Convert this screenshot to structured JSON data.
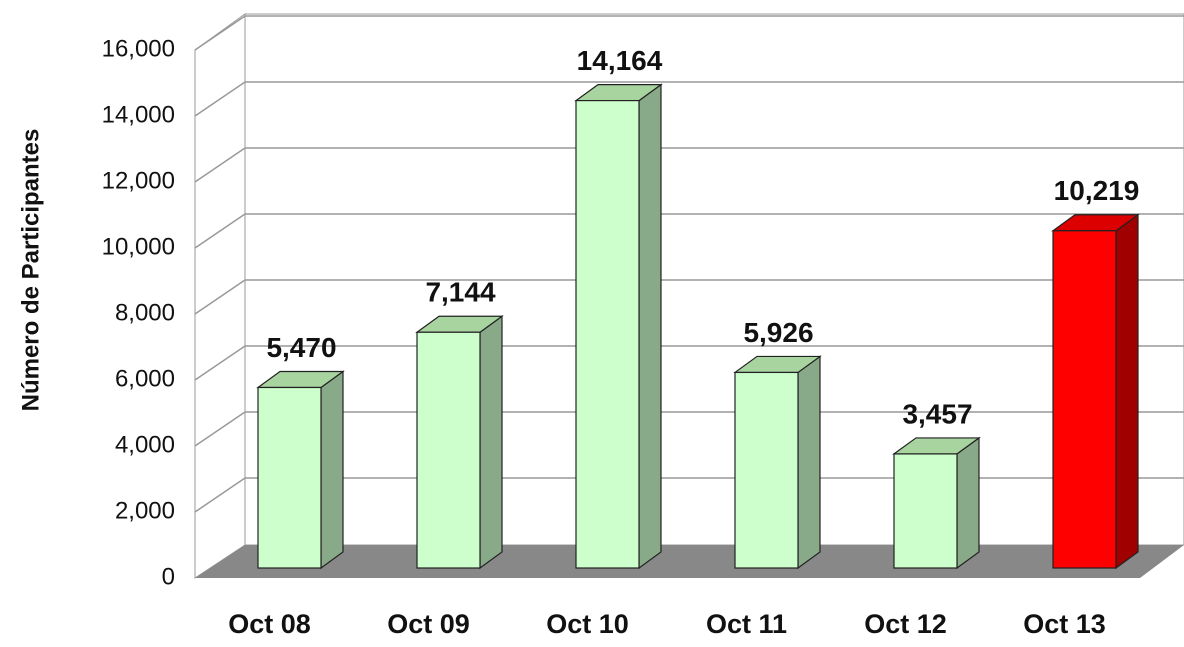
{
  "chart_data": {
    "type": "bar3d",
    "y_label": "Número de Participantes",
    "categories": [
      "Oct 08",
      "Oct 09",
      "Oct 10",
      "Oct 11",
      "Oct 12",
      "Oct 13"
    ],
    "values": [
      5470,
      7144,
      14164,
      5926,
      3457,
      10219
    ],
    "value_labels": [
      "5,470",
      "7,144",
      "14,164",
      "5,926",
      "3,457",
      "10,219"
    ],
    "colors": [
      "#ccffcc",
      "#ccffcc",
      "#ccffcc",
      "#ccffcc",
      "#ccffcc",
      "#ff0000"
    ],
    "ylim": [
      0,
      16000
    ],
    "yticks": [
      0,
      {
        "value": 2000,
        "label": "2,000"
      },
      {
        "value": 4000,
        "label": "4,000"
      },
      {
        "value": 6000,
        "label": "6,000"
      },
      {
        "value": 8000,
        "label": "8,000"
      },
      {
        "value": 10000,
        "label": "10,000"
      },
      {
        "value": 12000,
        "label": "12,000"
      },
      {
        "value": 14000,
        "label": "14,000"
      },
      {
        "value": 16000,
        "label": "16,000"
      }
    ],
    "grid": true
  }
}
